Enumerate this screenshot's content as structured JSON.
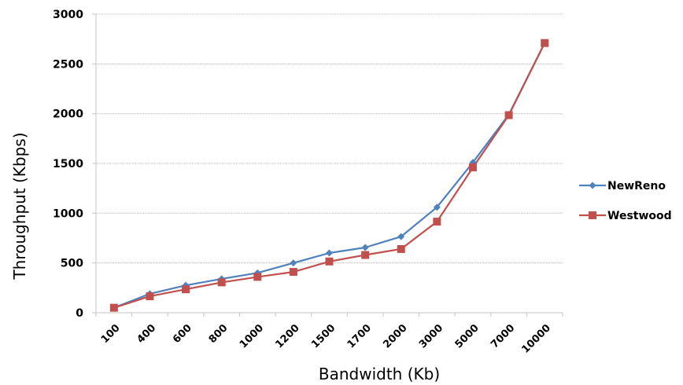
{
  "chart_data": {
    "type": "line",
    "xlabel": "Bandwidth (Kb)",
    "ylabel": "Throughput (Kbps)",
    "categories": [
      "100",
      "400",
      "600",
      "800",
      "1000",
      "1200",
      "1500",
      "1700",
      "2000",
      "3000",
      "5000",
      "7000",
      "10000"
    ],
    "ylim": [
      0,
      3000
    ],
    "yticks": [
      0,
      500,
      1000,
      1500,
      2000,
      2500,
      3000
    ],
    "grid": true,
    "legend_position": "right",
    "series": [
      {
        "name": "NewReno",
        "color": "#4F81BD",
        "marker": "diamond",
        "values": [
          50,
          190,
          275,
          340,
          400,
          500,
          600,
          655,
          765,
          1060,
          1510,
          1990,
          2710
        ]
      },
      {
        "name": "Westwood",
        "color": "#C0504D",
        "marker": "square",
        "values": [
          50,
          165,
          235,
          305,
          360,
          410,
          515,
          580,
          640,
          915,
          1460,
          1985,
          2710
        ]
      }
    ]
  }
}
